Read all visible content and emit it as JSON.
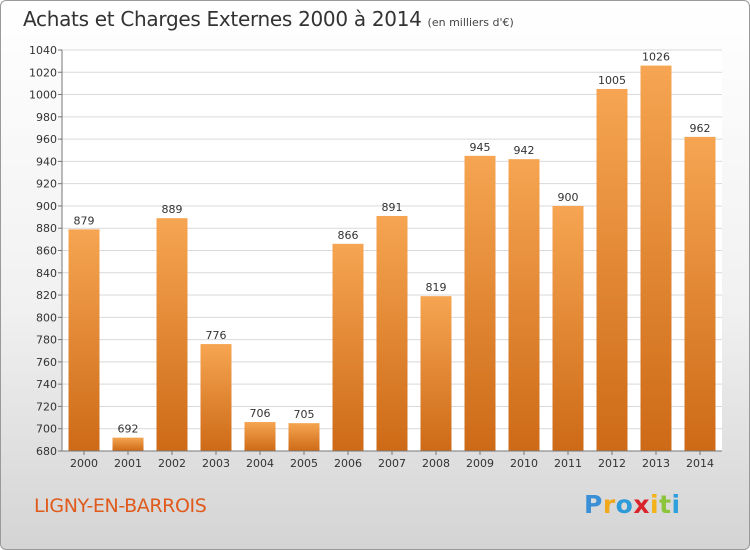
{
  "header": {
    "title": "Achats et Charges Externes 2000 à 2014",
    "subtitle": "(en milliers d'€)"
  },
  "footer": {
    "commune": "LIGNY-EN-BARROIS",
    "logo_letters": [
      "P",
      "r",
      "o",
      "x",
      "i",
      "t",
      "i"
    ]
  },
  "colors": {
    "bar_light": "#f6a552",
    "bar_dark": "#cd6a17",
    "commune_text": "#e05a1c"
  },
  "chart_data": {
    "type": "bar",
    "title": "Achats et Charges Externes 2000 à 2014",
    "subtitle": "(en milliers d'€)",
    "categories": [
      "2000",
      "2001",
      "2002",
      "2003",
      "2004",
      "2005",
      "2006",
      "2007",
      "2008",
      "2009",
      "2010",
      "2011",
      "2012",
      "2013",
      "2014"
    ],
    "values": [
      879,
      692,
      889,
      776,
      706,
      705,
      866,
      891,
      819,
      945,
      942,
      900,
      1005,
      1026,
      962
    ],
    "ylim": [
      680,
      1040
    ],
    "yticks": [
      680,
      700,
      720,
      740,
      760,
      780,
      800,
      820,
      840,
      860,
      880,
      900,
      920,
      940,
      960,
      980,
      1000,
      1020,
      1040
    ],
    "grid": true,
    "data_labels": true
  }
}
